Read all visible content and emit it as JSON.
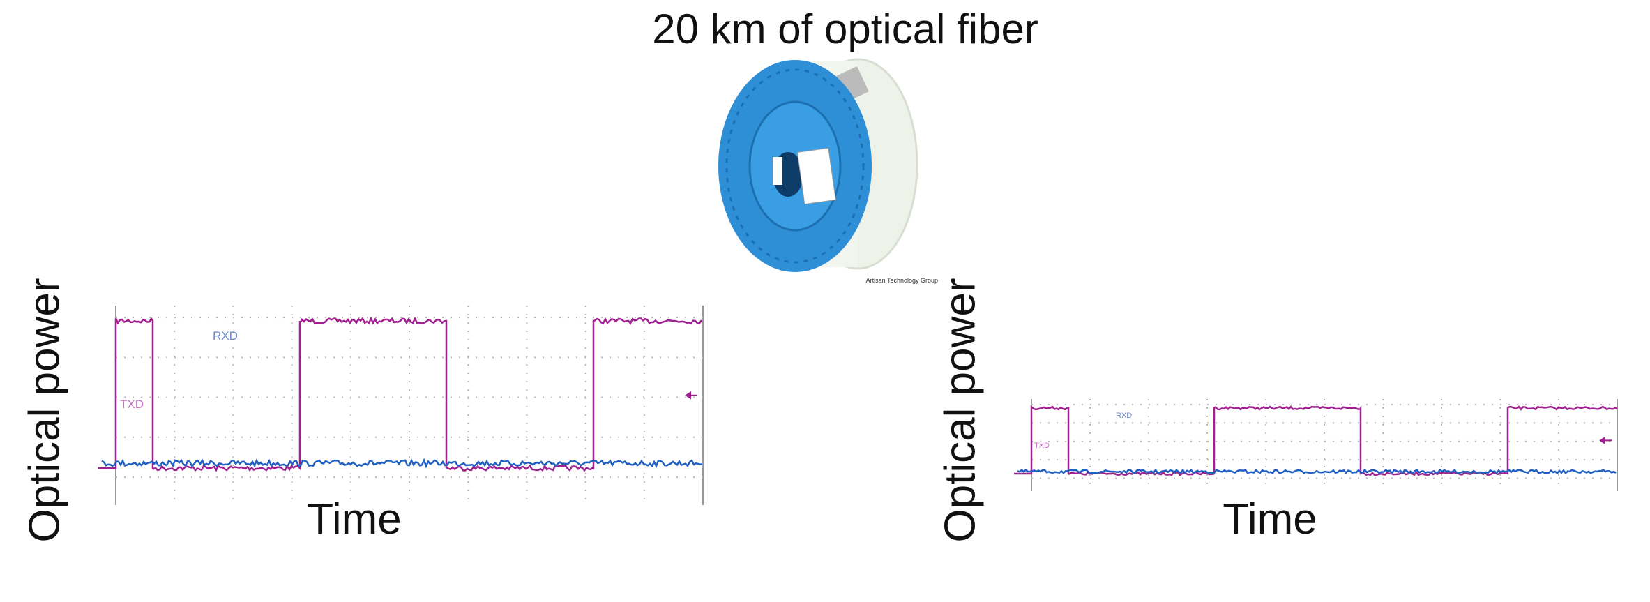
{
  "header": {
    "title": "20 km of optical fiber"
  },
  "image": {
    "credit": "Artisan Technology Group"
  },
  "plots": [
    {
      "y_label": "Optical power",
      "x_label": "Time",
      "traces": [
        "RXD",
        "TXD"
      ]
    },
    {
      "y_label": "Optical power",
      "x_label": "Time",
      "traces": [
        "RXD",
        "TXD"
      ]
    }
  ]
}
